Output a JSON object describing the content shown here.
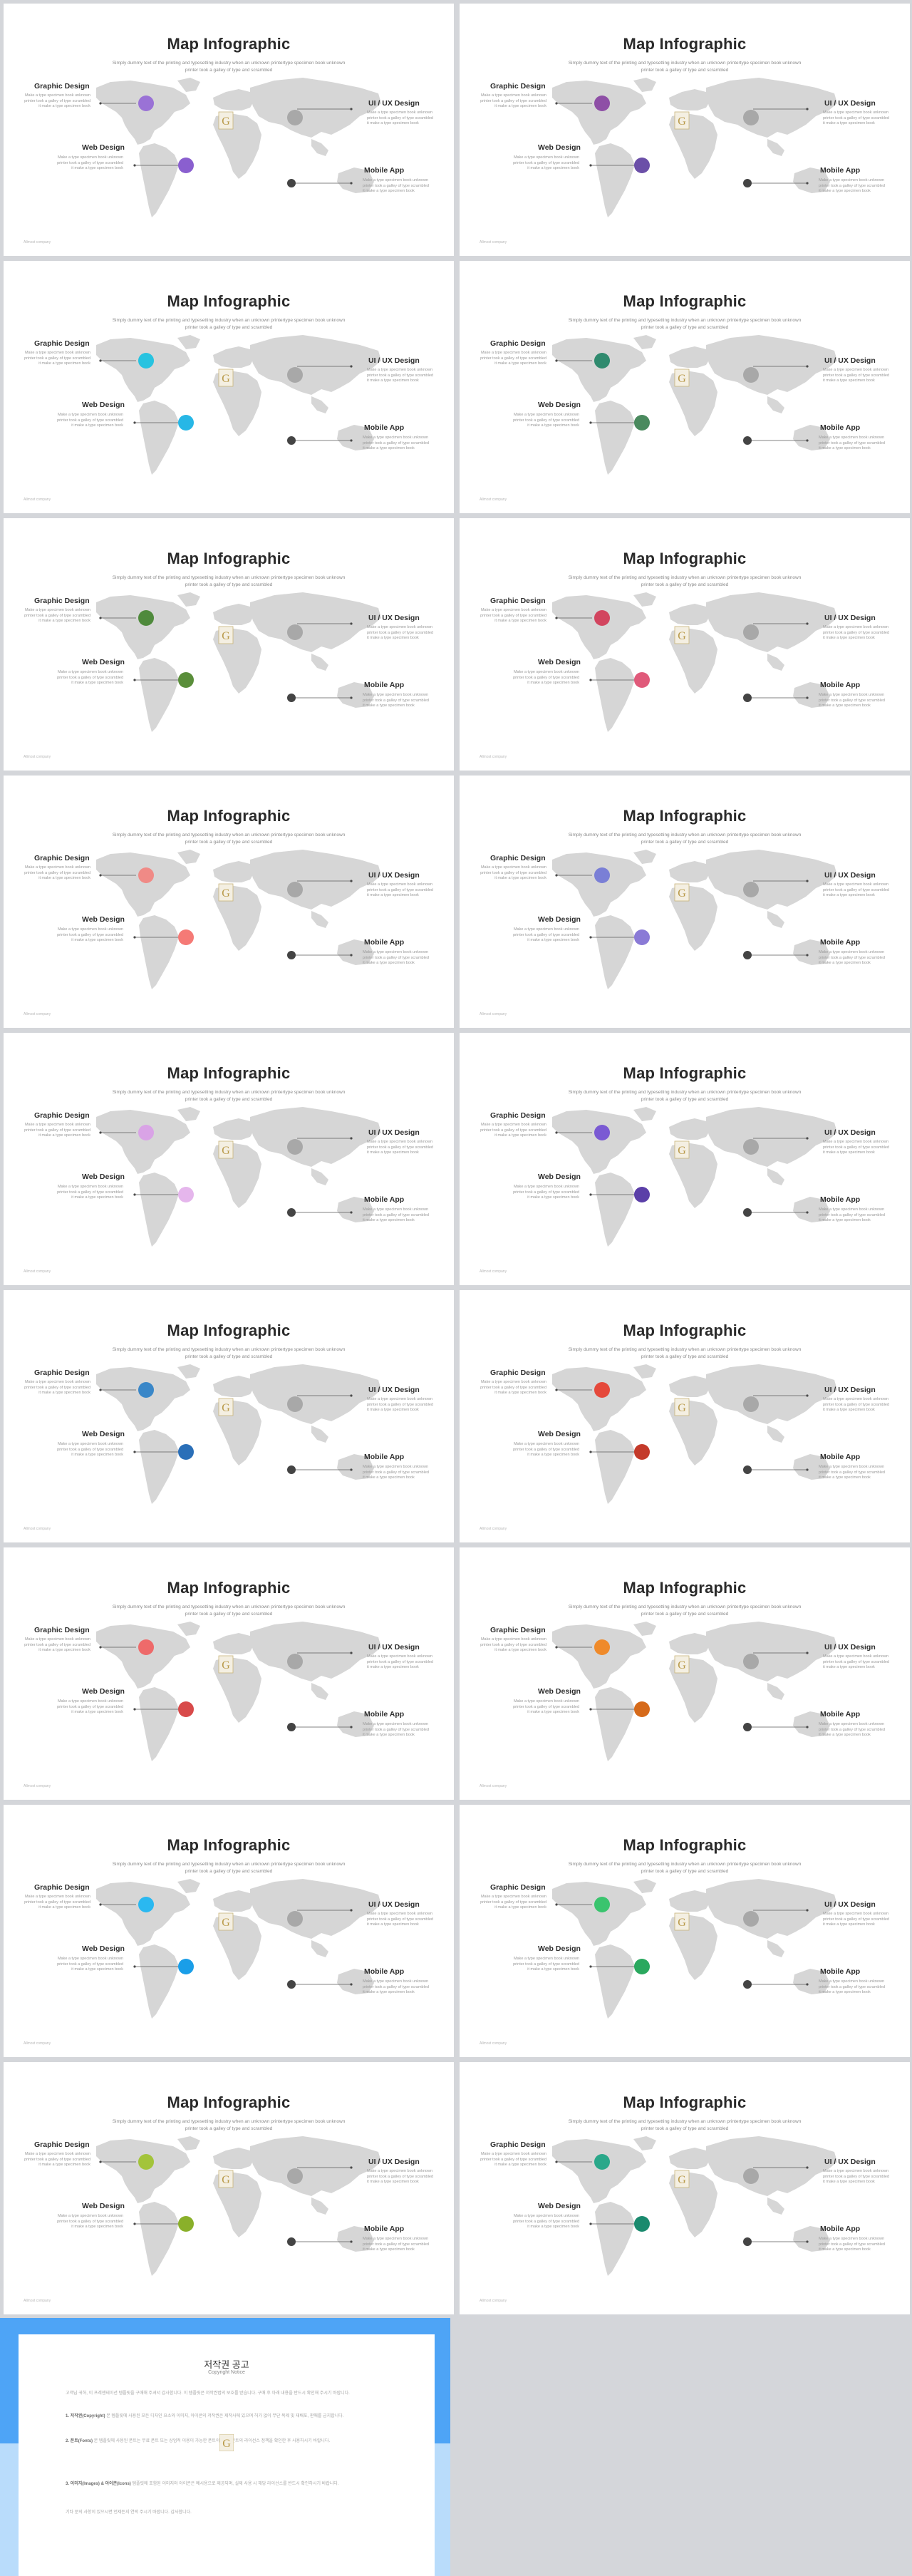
{
  "slide": {
    "title": "Map Infographic",
    "subtitle": "Simply dummy text of the printing and typesetting industry when  an unknown  printertype specimen book unknown  printer took a galley of type and scrambled",
    "graphic_design_label": "Graphic Design",
    "graphic_design_text": "Make a type specimen book unknown printer took a galley of type scrambled it make a type specimen book",
    "web_design_label": "Web Design",
    "web_design_text": "Make a type specimen book unknown printer took a galley of type scrambled it make a type specimen book",
    "uiux_label": "UI / UX Design",
    "uiux_text": "Make a type specimen book unknown printer took a galley of type scrambled it make a type specimen book",
    "mobile_label": "Mobile App",
    "mobile_text": "Make a type specimen book unknown printer took a galley of type scrambled it make a type specimen book",
    "footer": "Allmost company"
  },
  "slide_accents": [
    {
      "a": "#9a72d6",
      "b": "#8a5fcf"
    },
    {
      "a": "#8e4fa6",
      "b": "#6b4fa8"
    },
    {
      "a": "#27c3e0",
      "b": "#27b7e6"
    },
    {
      "a": "#2f8a6e",
      "b": "#4a8a5e"
    },
    {
      "a": "#4f8a3c",
      "b": "#5a8e3a"
    },
    {
      "a": "#d2455f",
      "b": "#e05a7a"
    },
    {
      "a": "#f08a86",
      "b": "#f57a76"
    },
    {
      "a": "#7a7fd6",
      "b": "#8a7ad6"
    },
    {
      "a": "#d9a3e6",
      "b": "#e5b6ec"
    },
    {
      "a": "#7a5ad3",
      "b": "#5b3fa8"
    },
    {
      "a": "#3a87c8",
      "b": "#2a6fb8"
    },
    {
      "a": "#e5493b",
      "b": "#c43a2a"
    },
    {
      "a": "#ee6a6a",
      "b": "#d84a4a"
    },
    {
      "a": "#ef8a2a",
      "b": "#d66a1a"
    },
    {
      "a": "#2ab8f0",
      "b": "#1a9ee8"
    },
    {
      "a": "#3ac46e",
      "b": "#2aa85e"
    },
    {
      "a": "#a3c43a",
      "b": "#8ab02a"
    },
    {
      "a": "#2aa88a",
      "b": "#1a8a6e"
    }
  ],
  "copyright": {
    "title": "저작권 공고",
    "subtitle": "Copyright Notice",
    "p1": "고객님 귀하, 이 프레젠테이션 템플릿을 구매해 주셔서 감사합니다. 이 템플릿은 저작권법의 보호를 받습니다. 구매 후 아래 내용을 반드시 확인해 주시기 바랍니다.",
    "p2_head": "1. 저작권(Copyright)",
    "p2": " 본 템플릿에 사용된 모든 디자인 요소와 이미지, 아이콘의 저작권은 제작사에 있으며 허가 없이 무단 복제 및 재배포, 판매를 금지합니다.",
    "p3_head": "2. 폰트(Fonts)",
    "p3": " 본 템플릿에 사용된 폰트는 무료 폰트 또는 상업적 이용이 가능한 폰트이며, 각 폰트의 라이선스 정책을 확인한 후 사용하시기 바랍니다.",
    "p4_head": "3. 이미지(Images) & 아이콘(Icons)",
    "p4": " 템플릿에 포함된 이미지와 아이콘은 예시용으로 제공되며, 실제 사용 시 해당 라이선스를 반드시 확인하시기 바랍니다.",
    "p5": "기타 문의 사항이 있으시면 언제든지 연락 주시기 바랍니다. 감사합니다."
  }
}
